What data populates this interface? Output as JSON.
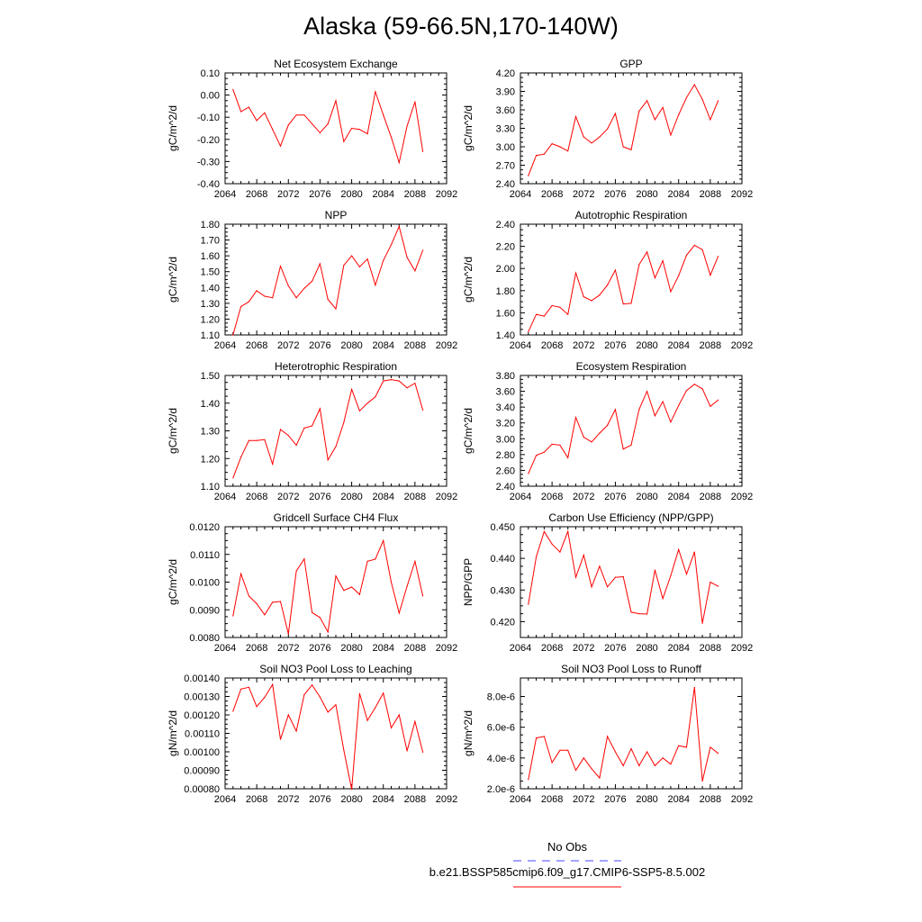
{
  "page": {
    "title": "Alaska (59-66.5N,170-140W)"
  },
  "legend": {
    "items": [
      {
        "label": "No Obs",
        "color": "#4444ff",
        "style": "dashed"
      },
      {
        "label": "b.e21.BSSP585cmip6.f09_g17.CMIP6-SSP5-8.5.002",
        "color": "#ff0000",
        "style": "solid"
      }
    ]
  },
  "colors": {
    "series": "#ff0000",
    "obs": "#4444ff"
  },
  "chart_data": [
    {
      "type": "line",
      "title": "Net Ecosystem Exchange",
      "ylabel": "gC/m^2/d",
      "xlim": [
        2064,
        2092
      ],
      "ylim": [
        -0.4,
        0.1
      ],
      "xticks": [
        "2064",
        "2068",
        "2072",
        "2076",
        "2080",
        "2084",
        "2088",
        "2092"
      ],
      "yticks": [
        "-0.40",
        "-0.30",
        "-0.20",
        "-0.10",
        "0.00",
        "0.10"
      ],
      "x": [
        2065,
        2066,
        2067,
        2068,
        2069,
        2070,
        2071,
        2072,
        2073,
        2074,
        2075,
        2076,
        2077,
        2078,
        2079,
        2080,
        2081,
        2082,
        2083,
        2084,
        2085,
        2086,
        2087,
        2088,
        2089
      ],
      "series": [
        {
          "values": [
            0.025,
            -0.075,
            -0.055,
            -0.115,
            -0.08,
            -0.155,
            -0.23,
            -0.135,
            -0.09,
            -0.09,
            -0.13,
            -0.17,
            -0.13,
            -0.025,
            -0.21,
            -0.15,
            -0.155,
            -0.175,
            0.015,
            -0.09,
            -0.19,
            -0.305,
            -0.14,
            -0.03,
            -0.255
          ]
        }
      ]
    },
    {
      "type": "line",
      "title": "GPP",
      "ylabel": "gC/m^2/d",
      "xlim": [
        2064,
        2092
      ],
      "ylim": [
        2.4,
        4.2
      ],
      "xticks": [
        "2064",
        "2068",
        "2072",
        "2076",
        "2080",
        "2084",
        "2088",
        "2092"
      ],
      "yticks": [
        "2.40",
        "2.70",
        "3.00",
        "3.30",
        "3.60",
        "3.90",
        "4.20"
      ],
      "x": [
        2065,
        2066,
        2067,
        2068,
        2069,
        2070,
        2071,
        2072,
        2073,
        2074,
        2075,
        2076,
        2077,
        2078,
        2079,
        2080,
        2081,
        2082,
        2083,
        2084,
        2085,
        2086,
        2087,
        2088,
        2089
      ],
      "series": [
        {
          "values": [
            2.53,
            2.86,
            2.88,
            3.05,
            3.0,
            2.93,
            3.49,
            3.16,
            3.06,
            3.16,
            3.29,
            3.54,
            3.0,
            2.95,
            3.58,
            3.75,
            3.44,
            3.64,
            3.19,
            3.52,
            3.8,
            4.01,
            3.77,
            3.44,
            3.75
          ]
        }
      ]
    },
    {
      "type": "line",
      "title": "NPP",
      "ylabel": "gC/m^2/d",
      "xlim": [
        2064,
        2092
      ],
      "ylim": [
        1.1,
        1.8
      ],
      "xticks": [
        "2064",
        "2068",
        "2072",
        "2076",
        "2080",
        "2084",
        "2088",
        "2092"
      ],
      "yticks": [
        "1.10",
        "1.20",
        "1.30",
        "1.40",
        "1.50",
        "1.60",
        "1.70",
        "1.80"
      ],
      "x": [
        2065,
        2066,
        2067,
        2068,
        2069,
        2070,
        2071,
        2072,
        2073,
        2074,
        2075,
        2076,
        2077,
        2078,
        2079,
        2080,
        2081,
        2082,
        2083,
        2084,
        2085,
        2086,
        2087,
        2088,
        2089
      ],
      "series": [
        {
          "values": [
            1.1,
            1.28,
            1.31,
            1.38,
            1.345,
            1.335,
            1.535,
            1.41,
            1.335,
            1.395,
            1.44,
            1.55,
            1.325,
            1.265,
            1.54,
            1.6,
            1.53,
            1.58,
            1.415,
            1.57,
            1.67,
            1.785,
            1.59,
            1.505,
            1.635
          ]
        }
      ]
    },
    {
      "type": "line",
      "title": "Autotrophic Respiration",
      "ylabel": "gC/m^2/d",
      "xlim": [
        2064,
        2092
      ],
      "ylim": [
        1.4,
        2.4
      ],
      "xticks": [
        "2064",
        "2068",
        "2072",
        "2076",
        "2080",
        "2084",
        "2088",
        "2092"
      ],
      "yticks": [
        "1.40",
        "1.60",
        "1.80",
        "2.00",
        "2.20",
        "2.40"
      ],
      "x": [
        2065,
        2066,
        2067,
        2068,
        2069,
        2070,
        2071,
        2072,
        2073,
        2074,
        2075,
        2076,
        2077,
        2078,
        2079,
        2080,
        2081,
        2082,
        2083,
        2084,
        2085,
        2086,
        2087,
        2088,
        2089
      ],
      "series": [
        {
          "values": [
            1.43,
            1.585,
            1.57,
            1.665,
            1.65,
            1.585,
            1.96,
            1.745,
            1.71,
            1.76,
            1.85,
            1.985,
            1.68,
            1.685,
            2.035,
            2.15,
            1.915,
            2.07,
            1.79,
            1.935,
            2.12,
            2.21,
            2.17,
            1.94,
            2.11
          ]
        }
      ]
    },
    {
      "type": "line",
      "title": "Heterotrophic Respiration",
      "ylabel": "gC/m^2/d",
      "xlim": [
        2064,
        2092
      ],
      "ylim": [
        1.1,
        1.5
      ],
      "xticks": [
        "2064",
        "2068",
        "2072",
        "2076",
        "2080",
        "2084",
        "2088",
        "2092"
      ],
      "yticks": [
        "1.10",
        "1.20",
        "1.30",
        "1.40",
        "1.50"
      ],
      "x": [
        2065,
        2066,
        2067,
        2068,
        2069,
        2070,
        2071,
        2072,
        2073,
        2074,
        2075,
        2076,
        2077,
        2078,
        2079,
        2080,
        2081,
        2082,
        2083,
        2084,
        2085,
        2086,
        2087,
        2088,
        2089
      ],
      "series": [
        {
          "values": [
            1.13,
            1.205,
            1.265,
            1.265,
            1.268,
            1.18,
            1.305,
            1.283,
            1.248,
            1.31,
            1.318,
            1.38,
            1.195,
            1.243,
            1.33,
            1.45,
            1.372,
            1.4,
            1.423,
            1.48,
            1.485,
            1.48,
            1.455,
            1.472,
            1.375
          ]
        }
      ]
    },
    {
      "type": "line",
      "title": "Ecosystem Respiration",
      "ylabel": "gC/m^2/d",
      "xlim": [
        2064,
        2092
      ],
      "ylim": [
        2.4,
        3.8
      ],
      "xticks": [
        "2064",
        "2068",
        "2072",
        "2076",
        "2080",
        "2084",
        "2088",
        "2092"
      ],
      "yticks": [
        "2.40",
        "2.60",
        "2.80",
        "3.00",
        "3.20",
        "3.40",
        "3.60",
        "3.80"
      ],
      "x": [
        2065,
        2066,
        2067,
        2068,
        2069,
        2070,
        2071,
        2072,
        2073,
        2074,
        2075,
        2076,
        2077,
        2078,
        2079,
        2080,
        2081,
        2082,
        2083,
        2084,
        2085,
        2086,
        2087,
        2088,
        2089
      ],
      "series": [
        {
          "values": [
            2.56,
            2.79,
            2.83,
            2.93,
            2.92,
            2.76,
            3.27,
            3.02,
            2.96,
            3.07,
            3.17,
            3.37,
            2.87,
            2.92,
            3.37,
            3.6,
            3.29,
            3.47,
            3.21,
            3.42,
            3.61,
            3.69,
            3.63,
            3.41,
            3.49
          ]
        }
      ]
    },
    {
      "type": "line",
      "title": "Gridcell Surface CH4 Flux",
      "ylabel": "gC/m^2/d",
      "xlim": [
        2064,
        2092
      ],
      "ylim": [
        0.008,
        0.012
      ],
      "xticks": [
        "2064",
        "2068",
        "2072",
        "2076",
        "2080",
        "2084",
        "2088",
        "2092"
      ],
      "yticks": [
        "0.0080",
        "0.0090",
        "0.0100",
        "0.0110",
        "0.0120"
      ],
      "x": [
        2065,
        2066,
        2067,
        2068,
        2069,
        2070,
        2071,
        2072,
        2073,
        2074,
        2075,
        2076,
        2077,
        2078,
        2079,
        2080,
        2081,
        2082,
        2083,
        2084,
        2085,
        2086,
        2087,
        2088,
        2089
      ],
      "series": [
        {
          "values": [
            0.00878,
            0.0103,
            0.0095,
            0.00922,
            0.00882,
            0.00927,
            0.0093,
            0.00813,
            0.0104,
            0.01084,
            0.0089,
            0.00872,
            0.0082,
            0.01022,
            0.0097,
            0.00982,
            0.00955,
            0.01075,
            0.01083,
            0.0115,
            0.01,
            0.00888,
            0.00985,
            0.01075,
            0.0095
          ]
        }
      ]
    },
    {
      "type": "line",
      "title": "Carbon Use Efficiency (NPP/GPP)",
      "ylabel": "NPP/GPP",
      "xlim": [
        2064,
        2092
      ],
      "ylim": [
        0.415,
        0.45
      ],
      "xticks": [
        "2064",
        "2068",
        "2072",
        "2076",
        "2080",
        "2084",
        "2088",
        "2092"
      ],
      "yticks": [
        "0.420",
        "0.430",
        "0.440",
        "0.450"
      ],
      "x": [
        2065,
        2066,
        2067,
        2068,
        2069,
        2070,
        2071,
        2072,
        2073,
        2074,
        2075,
        2076,
        2077,
        2078,
        2079,
        2080,
        2081,
        2082,
        2083,
        2084,
        2085,
        2086,
        2087,
        2088,
        2089
      ],
      "series": [
        {
          "values": [
            0.4255,
            0.4405,
            0.4485,
            0.4445,
            0.442,
            0.4485,
            0.434,
            0.441,
            0.431,
            0.4375,
            0.431,
            0.434,
            0.4342,
            0.423,
            0.4225,
            0.4224,
            0.4363,
            0.4273,
            0.4345,
            0.4428,
            0.435,
            0.442,
            0.4195,
            0.4325,
            0.4312
          ]
        }
      ]
    },
    {
      "type": "line",
      "title": "Soil NO3 Pool Loss to Leaching",
      "ylabel": "gN/m^2/d",
      "xlim": [
        2064,
        2092
      ],
      "ylim": [
        0.0008,
        0.0014
      ],
      "xticks": [
        "2064",
        "2068",
        "2072",
        "2076",
        "2080",
        "2084",
        "2088",
        "2092"
      ],
      "yticks": [
        "0.00080",
        "0.00090",
        "0.00100",
        "0.00110",
        "0.00120",
        "0.00130",
        "0.00140"
      ],
      "x": [
        2065,
        2066,
        2067,
        2068,
        2069,
        2070,
        2071,
        2072,
        2073,
        2074,
        2075,
        2076,
        2077,
        2078,
        2079,
        2080,
        2081,
        2082,
        2083,
        2084,
        2085,
        2086,
        2087,
        2088,
        2089
      ],
      "series": [
        {
          "values": [
            0.00122,
            0.00134,
            0.00135,
            0.001245,
            0.001295,
            0.001365,
            0.001068,
            0.0012,
            0.001112,
            0.00131,
            0.001362,
            0.001297,
            0.001215,
            0.001255,
            0.00101,
            0.000797,
            0.001315,
            0.00117,
            0.00124,
            0.001318,
            0.00113,
            0.0012,
            0.001005,
            0.001165,
            0.000998
          ]
        }
      ]
    },
    {
      "type": "line",
      "title": "Soil NO3 Pool Loss to Runoff",
      "ylabel": "gN/m^2/d",
      "xlim": [
        2064,
        2092
      ],
      "ylim": [
        2e-06,
        9.2e-06
      ],
      "xticks": [
        "2064",
        "2068",
        "2072",
        "2076",
        "2080",
        "2084",
        "2088",
        "2092"
      ],
      "yticks": [
        "2.0e-6",
        "4.0e-6",
        "6.0e-6",
        "8.0e-6"
      ],
      "ytick_values": [
        2e-06,
        4e-06,
        6e-06,
        8e-06
      ],
      "x": [
        2065,
        2066,
        2067,
        2068,
        2069,
        2070,
        2071,
        2072,
        2073,
        2074,
        2075,
        2076,
        2077,
        2078,
        2079,
        2080,
        2081,
        2082,
        2083,
        2084,
        2085,
        2086,
        2087,
        2088,
        2089
      ],
      "series": [
        {
          "values": [
            2.6e-06,
            5.3e-06,
            5.4e-06,
            3.7e-06,
            4.5e-06,
            4.5e-06,
            3.2e-06,
            4e-06,
            3.3e-06,
            2.7e-06,
            5.4e-06,
            4.4e-06,
            3.5e-06,
            4.6e-06,
            3.5e-06,
            4.4e-06,
            3.5e-06,
            4e-06,
            3.6e-06,
            4.8e-06,
            4.7e-06,
            8.6e-06,
            2.5e-06,
            4.7e-06,
            4.3e-06
          ]
        }
      ]
    }
  ]
}
